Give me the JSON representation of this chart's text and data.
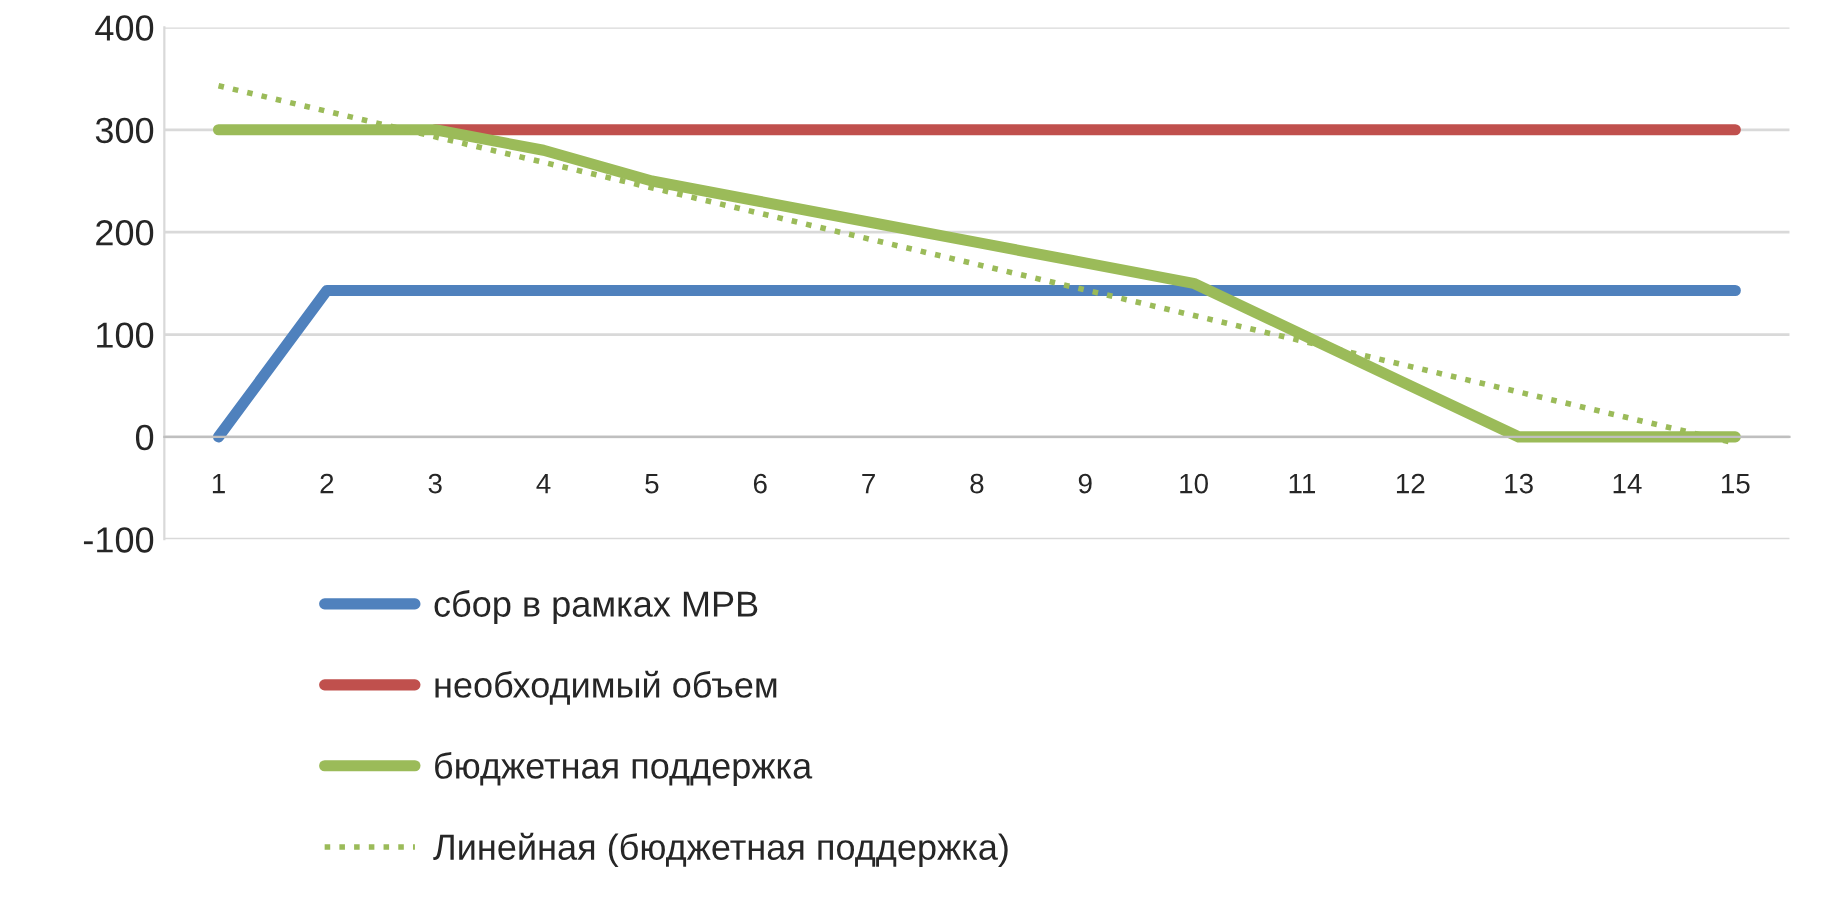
{
  "chart_data": {
    "type": "line",
    "categories": [
      "1",
      "2",
      "3",
      "4",
      "5",
      "6",
      "7",
      "8",
      "9",
      "10",
      "11",
      "12",
      "13",
      "14",
      "15"
    ],
    "series": [
      {
        "name": "сбор в рамках МРВ",
        "color": "#4f81bd",
        "values": [
          0,
          143,
          143,
          143,
          143,
          143,
          143,
          143,
          143,
          143,
          143,
          143,
          143,
          143,
          143
        ]
      },
      {
        "name": "необходимый объем",
        "color": "#c0504d",
        "values": [
          null,
          null,
          300,
          300,
          300,
          300,
          300,
          300,
          300,
          300,
          300,
          300,
          300,
          300,
          300
        ]
      },
      {
        "name": "бюджетная поддержка",
        "color": "#9bbb59",
        "values": [
          300,
          300,
          300,
          280,
          250,
          230,
          210,
          190,
          170,
          150,
          100,
          50,
          0,
          0,
          0
        ]
      },
      {
        "name": "Линейная (бюджетная поддержка)",
        "color": "#9bbb59",
        "x": [
          "1",
          "15"
        ],
        "values": [
          343,
          -6
        ],
        "line_style": "dotted"
      }
    ],
    "ylim": [
      -100,
      400
    ],
    "yticks": [
      -100,
      0,
      100,
      200,
      300,
      400
    ],
    "grid": "y",
    "legend": "bottom",
    "marker": "none",
    "line_style": "solid"
  }
}
